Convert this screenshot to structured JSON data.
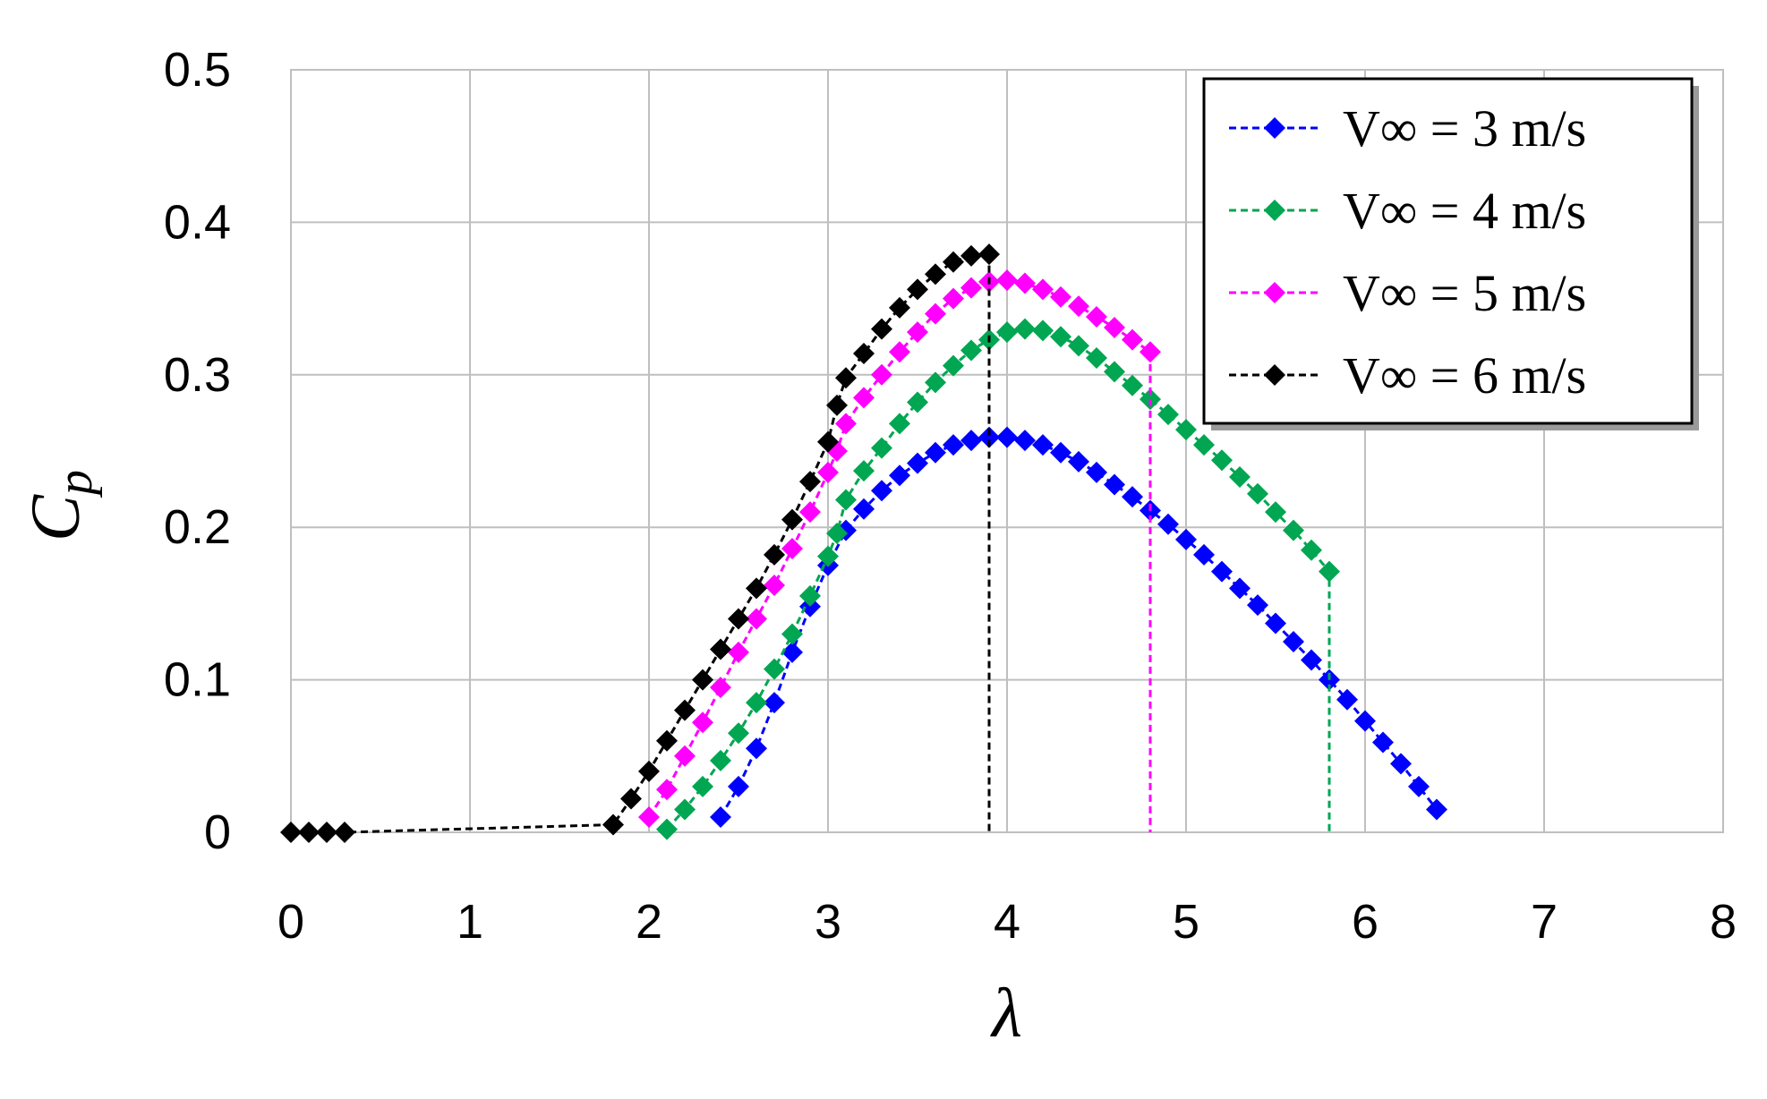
{
  "chart_data": {
    "type": "line",
    "title": "",
    "xlabel": "λ",
    "ylabel": "C",
    "ylabel_subscript": "p",
    "xlim": [
      0,
      8
    ],
    "ylim": [
      0,
      0.5
    ],
    "x_ticks": [
      "0",
      "1",
      "2",
      "3",
      "4",
      "5",
      "6",
      "7",
      "8"
    ],
    "y_ticks": [
      "0",
      "0.1",
      "0.2",
      "0.3",
      "0.4",
      "0.5"
    ],
    "grid": true,
    "legend_position": "top-right",
    "marker": "diamond",
    "line_style": "dashed",
    "series": [
      {
        "name": "V∞ = 3 m/s",
        "color": "#0000FF",
        "points": [
          [
            2.4,
            0.01
          ],
          [
            2.5,
            0.03
          ],
          [
            2.6,
            0.055
          ],
          [
            2.7,
            0.085
          ],
          [
            2.8,
            0.118
          ],
          [
            2.9,
            0.148
          ],
          [
            3.0,
            0.175
          ],
          [
            3.1,
            0.198
          ],
          [
            3.2,
            0.212
          ],
          [
            3.3,
            0.224
          ],
          [
            3.4,
            0.234
          ],
          [
            3.5,
            0.242
          ],
          [
            3.6,
            0.249
          ],
          [
            3.7,
            0.254
          ],
          [
            3.8,
            0.257
          ],
          [
            3.9,
            0.259
          ],
          [
            4.0,
            0.259
          ],
          [
            4.1,
            0.257
          ],
          [
            4.2,
            0.254
          ],
          [
            4.3,
            0.249
          ],
          [
            4.4,
            0.243
          ],
          [
            4.5,
            0.236
          ],
          [
            4.6,
            0.228
          ],
          [
            4.7,
            0.22
          ],
          [
            4.8,
            0.211
          ],
          [
            4.9,
            0.202
          ],
          [
            5.0,
            0.192
          ],
          [
            5.1,
            0.182
          ],
          [
            5.2,
            0.171
          ],
          [
            5.3,
            0.16
          ],
          [
            5.4,
            0.149
          ],
          [
            5.5,
            0.137
          ],
          [
            5.6,
            0.125
          ],
          [
            5.7,
            0.113
          ],
          [
            5.8,
            0.1
          ],
          [
            5.9,
            0.087
          ],
          [
            6.0,
            0.073
          ],
          [
            6.1,
            0.059
          ],
          [
            6.2,
            0.045
          ],
          [
            6.3,
            0.03
          ],
          [
            6.4,
            0.015
          ]
        ]
      },
      {
        "name": "V∞ = 4 m/s",
        "color": "#00A651",
        "points": [
          [
            2.1,
            0.002
          ],
          [
            2.2,
            0.015
          ],
          [
            2.3,
            0.03
          ],
          [
            2.4,
            0.047
          ],
          [
            2.5,
            0.065
          ],
          [
            2.6,
            0.085
          ],
          [
            2.7,
            0.107
          ],
          [
            2.8,
            0.13
          ],
          [
            2.9,
            0.155
          ],
          [
            3.0,
            0.181
          ],
          [
            3.05,
            0.196
          ],
          [
            3.1,
            0.218
          ],
          [
            3.2,
            0.237
          ],
          [
            3.3,
            0.252
          ],
          [
            3.4,
            0.268
          ],
          [
            3.5,
            0.282
          ],
          [
            3.6,
            0.295
          ],
          [
            3.7,
            0.306
          ],
          [
            3.8,
            0.316
          ],
          [
            3.9,
            0.323
          ],
          [
            4.0,
            0.328
          ],
          [
            4.1,
            0.33
          ],
          [
            4.2,
            0.329
          ],
          [
            4.3,
            0.325
          ],
          [
            4.4,
            0.319
          ],
          [
            4.5,
            0.311
          ],
          [
            4.6,
            0.302
          ],
          [
            4.7,
            0.293
          ],
          [
            4.8,
            0.284
          ],
          [
            4.9,
            0.274
          ],
          [
            5.0,
            0.264
          ],
          [
            5.1,
            0.254
          ],
          [
            5.2,
            0.244
          ],
          [
            5.3,
            0.233
          ],
          [
            5.4,
            0.222
          ],
          [
            5.5,
            0.21
          ],
          [
            5.6,
            0.198
          ],
          [
            5.7,
            0.185
          ],
          [
            5.8,
            0.171
          ],
          [
            5.8,
            0
          ]
        ]
      },
      {
        "name": "V∞ = 5 m/s",
        "color": "#FF00FF",
        "points": [
          [
            2.0,
            0.01
          ],
          [
            2.1,
            0.028
          ],
          [
            2.2,
            0.05
          ],
          [
            2.3,
            0.072
          ],
          [
            2.4,
            0.095
          ],
          [
            2.5,
            0.118
          ],
          [
            2.6,
            0.14
          ],
          [
            2.7,
            0.162
          ],
          [
            2.8,
            0.186
          ],
          [
            2.9,
            0.21
          ],
          [
            3.0,
            0.236
          ],
          [
            3.05,
            0.25
          ],
          [
            3.1,
            0.268
          ],
          [
            3.2,
            0.285
          ],
          [
            3.3,
            0.3
          ],
          [
            3.4,
            0.315
          ],
          [
            3.5,
            0.328
          ],
          [
            3.6,
            0.34
          ],
          [
            3.7,
            0.35
          ],
          [
            3.8,
            0.357
          ],
          [
            3.9,
            0.361
          ],
          [
            4.0,
            0.362
          ],
          [
            4.1,
            0.36
          ],
          [
            4.2,
            0.356
          ],
          [
            4.3,
            0.351
          ],
          [
            4.4,
            0.345
          ],
          [
            4.5,
            0.338
          ],
          [
            4.6,
            0.331
          ],
          [
            4.7,
            0.323
          ],
          [
            4.8,
            0.315
          ],
          [
            4.8,
            0
          ]
        ]
      },
      {
        "name": "V∞ = 6 m/s",
        "color": "#000000",
        "points": [
          [
            0.0,
            0.0
          ],
          [
            0.1,
            0.0
          ],
          [
            0.2,
            0.0
          ],
          [
            0.3,
            0.0
          ],
          [
            1.8,
            0.005
          ],
          [
            1.9,
            0.022
          ],
          [
            2.0,
            0.04
          ],
          [
            2.1,
            0.06
          ],
          [
            2.2,
            0.08
          ],
          [
            2.3,
            0.1
          ],
          [
            2.4,
            0.12
          ],
          [
            2.5,
            0.14
          ],
          [
            2.6,
            0.16
          ],
          [
            2.7,
            0.182
          ],
          [
            2.8,
            0.205
          ],
          [
            2.9,
            0.23
          ],
          [
            3.0,
            0.256
          ],
          [
            3.05,
            0.28
          ],
          [
            3.1,
            0.298
          ],
          [
            3.2,
            0.314
          ],
          [
            3.3,
            0.33
          ],
          [
            3.4,
            0.344
          ],
          [
            3.5,
            0.356
          ],
          [
            3.6,
            0.366
          ],
          [
            3.7,
            0.374
          ],
          [
            3.8,
            0.378
          ],
          [
            3.9,
            0.379
          ],
          [
            3.9,
            0
          ]
        ]
      }
    ]
  }
}
